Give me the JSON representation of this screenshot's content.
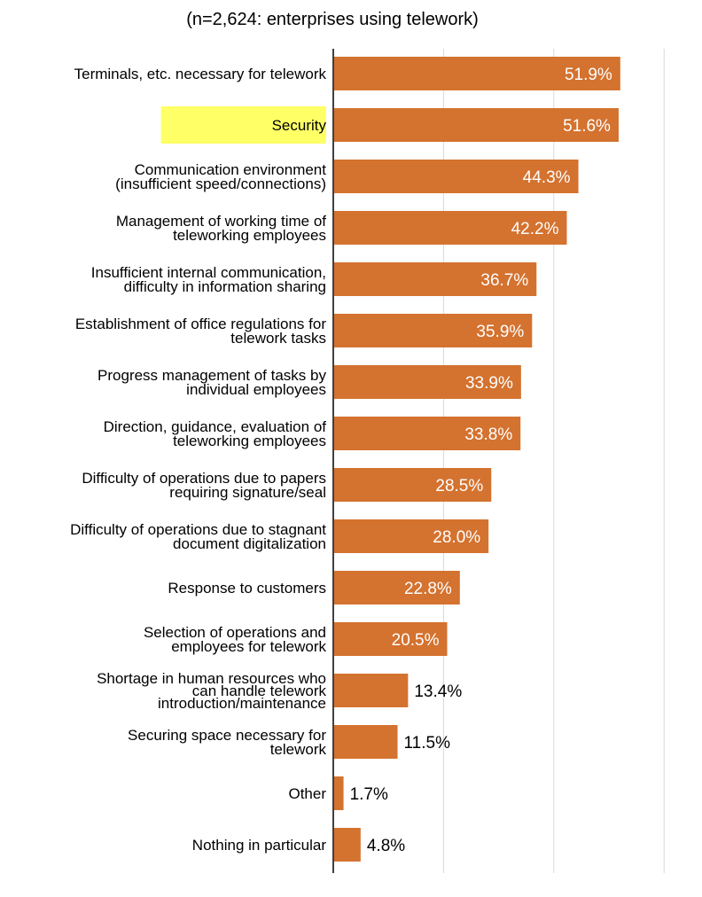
{
  "chart_data": {
    "type": "bar",
    "orientation": "horizontal",
    "subtitle": "(n=2,624: enterprises using telework)",
    "categories": [
      [
        "Terminals, etc. necessary for telework"
      ],
      [
        "Security"
      ],
      [
        "Communication environment",
        "(insufficient speed/connections)"
      ],
      [
        "Management of working time of",
        "teleworking employees"
      ],
      [
        "Insufficient internal communication,",
        "difficulty in information sharing"
      ],
      [
        "Establishment of office regulations for",
        "telework tasks"
      ],
      [
        "Progress management of tasks by",
        "individual employees"
      ],
      [
        "Direction, guidance, evaluation of",
        "teleworking employees"
      ],
      [
        "Difficulty of operations due to papers",
        "requiring signature/seal"
      ],
      [
        "Difficulty of operations due to stagnant",
        "document digitalization"
      ],
      [
        "Response to customers"
      ],
      [
        "Selection of operations and",
        "employees for telework"
      ],
      [
        "Shortage in human resources who",
        "can handle telework",
        "introduction/maintenance"
      ],
      [
        "Securing space necessary for",
        "telework"
      ],
      [
        "Other"
      ],
      [
        "Nothing in particular"
      ]
    ],
    "values": [
      51.9,
      51.6,
      44.3,
      42.2,
      36.7,
      35.9,
      33.9,
      33.8,
      28.5,
      28.0,
      22.8,
      20.5,
      13.4,
      11.5,
      1.7,
      4.8
    ],
    "value_labels": [
      "51.9%",
      "51.6%",
      "44.3%",
      "42.2%",
      "36.7%",
      "35.9%",
      "33.9%",
      "33.8%",
      "28.5%",
      "28.0%",
      "22.8%",
      "20.5%",
      "13.4%",
      "11.5%",
      "1.7%",
      "4.8%"
    ],
    "highlighted_category_index": 1,
    "xlim": [
      0,
      60
    ],
    "gridlines_at": [
      0,
      20,
      40,
      60
    ],
    "grid": true,
    "colors": {
      "bar": "#D4722F",
      "highlight": "#FFFF66",
      "gridline": "#D9D9D9",
      "axis": "#000000",
      "label_inside": "#FFFFFF",
      "label_outside": "#000000"
    }
  }
}
